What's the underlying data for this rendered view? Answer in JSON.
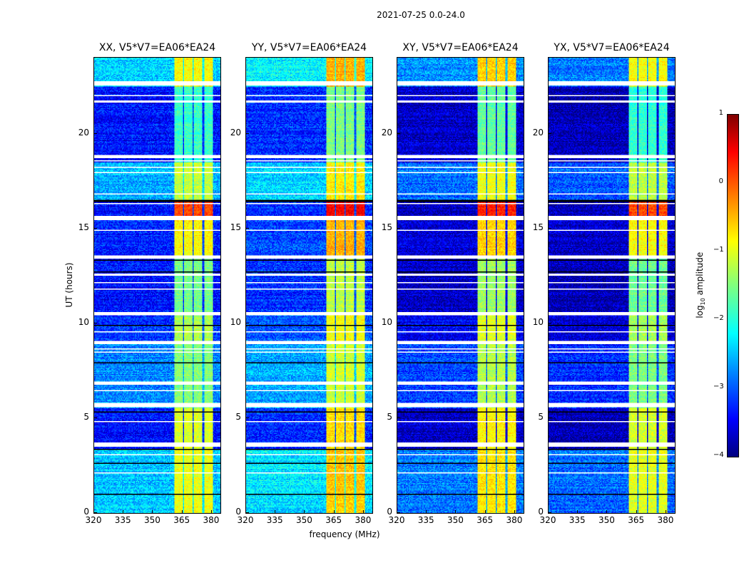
{
  "chart_data": {
    "type": "heatmap",
    "title": "2021-07-25 0.0-24.0",
    "xlabel": "frequency (MHz)",
    "ylabel": "UT (hours)",
    "xlim": [
      320,
      384.4
    ],
    "ylim": [
      0,
      24
    ],
    "xticks": [
      "320",
      "335",
      "350",
      "365",
      "380"
    ],
    "xtick_values": [
      320,
      335,
      350,
      365,
      380
    ],
    "yticks": [
      "0",
      "5",
      "10",
      "15",
      "20"
    ],
    "ytick_values": [
      0,
      5,
      10,
      15,
      20
    ],
    "colorbar": {
      "label_main": "log",
      "label_sub": "10",
      "label_rest": " amplitude",
      "colormap": "jet",
      "range": [
        -4,
        1
      ],
      "ticks": [
        "1",
        "0",
        "−1",
        "−2",
        "−3",
        "−4"
      ],
      "tick_values": [
        1,
        0,
        -1,
        -2,
        -3,
        -4
      ]
    },
    "panels": [
      {
        "title": "XX, V5*V7=EA06*EA24",
        "bg_offset": 0.0,
        "band_offset": -0.15
      },
      {
        "title": "YY, V5*V7=EA06*EA24",
        "bg_offset": 0.15,
        "band_offset": 0.2
      },
      {
        "title": "XY, V5*V7=EA06*EA24",
        "bg_offset": -0.35,
        "band_offset": 0.05
      },
      {
        "title": "YX, V5*V7=EA06*EA24",
        "bg_offset": -0.45,
        "band_offset": -0.2
      }
    ],
    "rfi_band_mhz": [
      360.7,
      380.4
    ],
    "band_gaps_mhz": [
      365.5,
      370.5,
      375.6
    ],
    "time_segments": [
      {
        "t": [
          0,
          3.3
        ],
        "bg": -2.4,
        "band": -0.8
      },
      {
        "t": [
          3.3,
          5.5
        ],
        "bg": -3.3,
        "band": -0.9
      },
      {
        "t": [
          5.5,
          9.0
        ],
        "bg": -2.7,
        "band": -1.3
      },
      {
        "t": [
          9.0,
          10.5
        ],
        "bg": -3.1,
        "band": -1.1
      },
      {
        "t": [
          10.5,
          13.5
        ],
        "bg": -3.3,
        "band": -1.4
      },
      {
        "t": [
          13.5,
          15.5
        ],
        "bg": -3.2,
        "band": -0.7
      },
      {
        "t": [
          15.5,
          16.5
        ],
        "bg": -3.3,
        "band": 0.2
      },
      {
        "t": [
          16.5,
          18.5
        ],
        "bg": -2.5,
        "band": -1.0
      },
      {
        "t": [
          18.5,
          22.5
        ],
        "bg": -3.3,
        "band": -1.7
      },
      {
        "t": [
          22.5,
          24
        ],
        "bg": -2.3,
        "band": -0.7
      }
    ],
    "flagged_hours": [
      [
        22.55,
        22.75
      ],
      [
        21.95,
        22.05
      ],
      [
        21.65,
        21.72
      ],
      [
        18.7,
        18.88
      ],
      [
        18.55,
        18.6
      ],
      [
        18.2,
        18.25
      ],
      [
        17.9,
        17.97
      ],
      [
        17.55,
        17.6
      ],
      [
        16.8,
        16.85
      ],
      [
        16.3,
        16.35
      ],
      [
        15.45,
        15.65
      ],
      [
        14.85,
        14.92
      ],
      [
        13.4,
        13.55
      ],
      [
        12.5,
        12.6
      ],
      [
        12.1,
        12.15
      ],
      [
        11.8,
        11.85
      ],
      [
        10.4,
        10.6
      ],
      [
        9.5,
        9.55
      ],
      [
        8.9,
        9.08
      ],
      [
        8.6,
        8.66
      ],
      [
        8.45,
        8.5
      ],
      [
        6.75,
        6.92
      ],
      [
        6.45,
        6.5
      ],
      [
        5.6,
        5.78
      ],
      [
        4.8,
        4.85
      ],
      [
        3.5,
        3.7
      ],
      [
        3.05,
        3.1
      ],
      [
        2.1,
        2.15
      ],
      [
        0.2,
        0.25
      ]
    ],
    "dark_hours": [
      5.3,
      3.35,
      9.9,
      13.3,
      16.45,
      12.7,
      7.9,
      1.0,
      2.6
    ]
  }
}
